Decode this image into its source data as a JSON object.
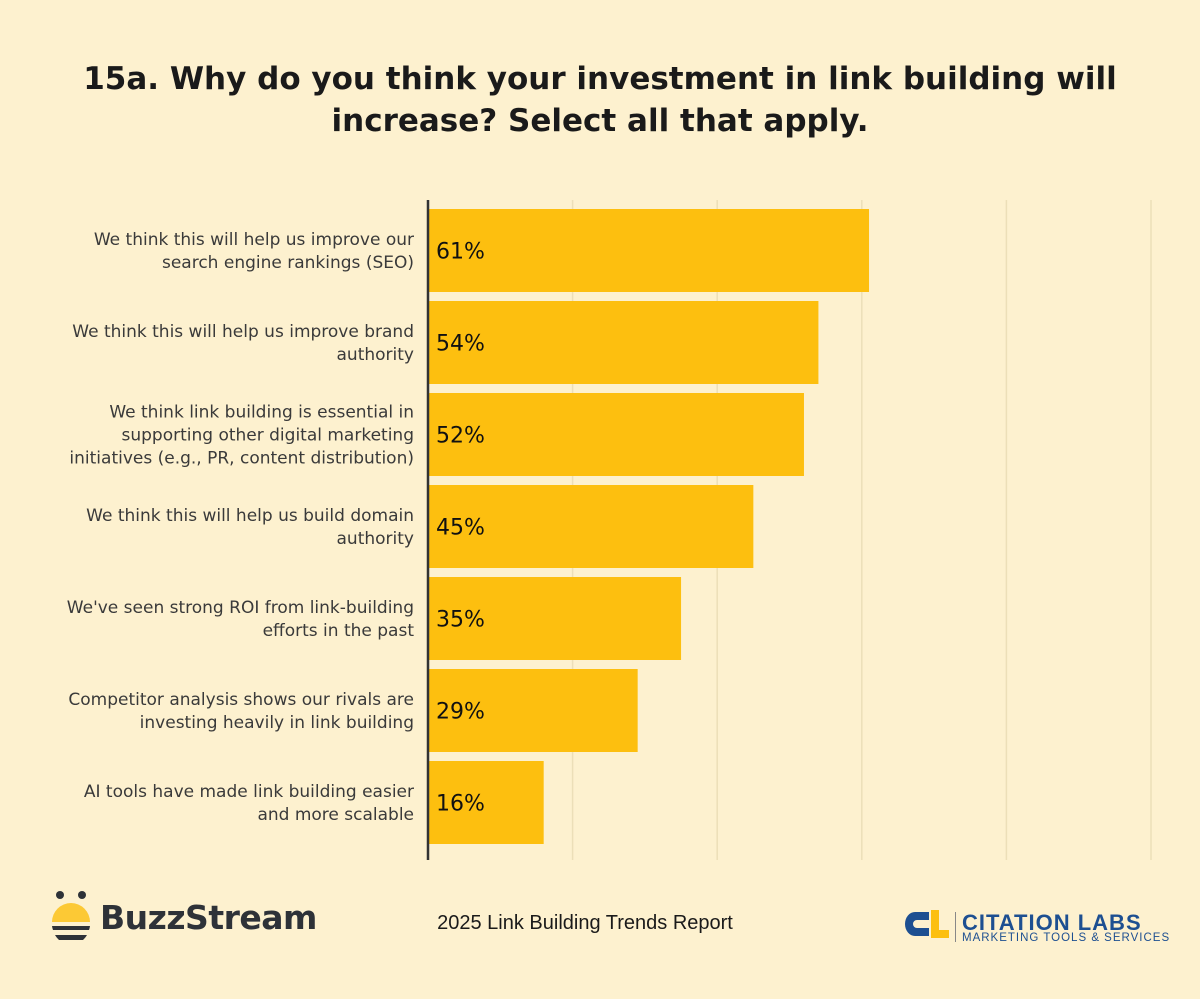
{
  "chart_data": {
    "type": "bar",
    "orientation": "horizontal",
    "title": "15a. Why do you think your investment in link building will increase? Select all that apply.",
    "categories": [
      [
        "We think this will help us improve our",
        "search engine rankings (SEO)"
      ],
      [
        "We think this will help us improve brand",
        "authority"
      ],
      [
        "We think link building is essential in",
        "supporting other digital marketing",
        "initiatives (e.g., PR, content distribution)"
      ],
      [
        "We think this will help us build domain",
        "authority"
      ],
      [
        "We've seen strong ROI from link-building",
        "efforts in the past"
      ],
      [
        "Competitor analysis shows our rivals are",
        "investing heavily in link building"
      ],
      [
        "AI tools have made link building easier",
        "and more scalable"
      ]
    ],
    "values": [
      61,
      54,
      52,
      45,
      35,
      29,
      16
    ],
    "labels": [
      "61%",
      "54%",
      "52%",
      "45%",
      "35%",
      "29%",
      "16%"
    ],
    "xlim": [
      0,
      100
    ],
    "gridlines": [
      20,
      40,
      60,
      80,
      100
    ],
    "grid": true,
    "colors": {
      "bar": "#fdbf0f",
      "background": "#fdf1cf",
      "grid": "#ecdfb8",
      "axis": "#333333"
    }
  },
  "footer": {
    "report": "2025 Link Building Trends Report",
    "left_logo": "BuzzStream",
    "right_logo": "CITATION LABS",
    "right_logo_sub": "MARKETING TOOLS & SERVICES"
  }
}
